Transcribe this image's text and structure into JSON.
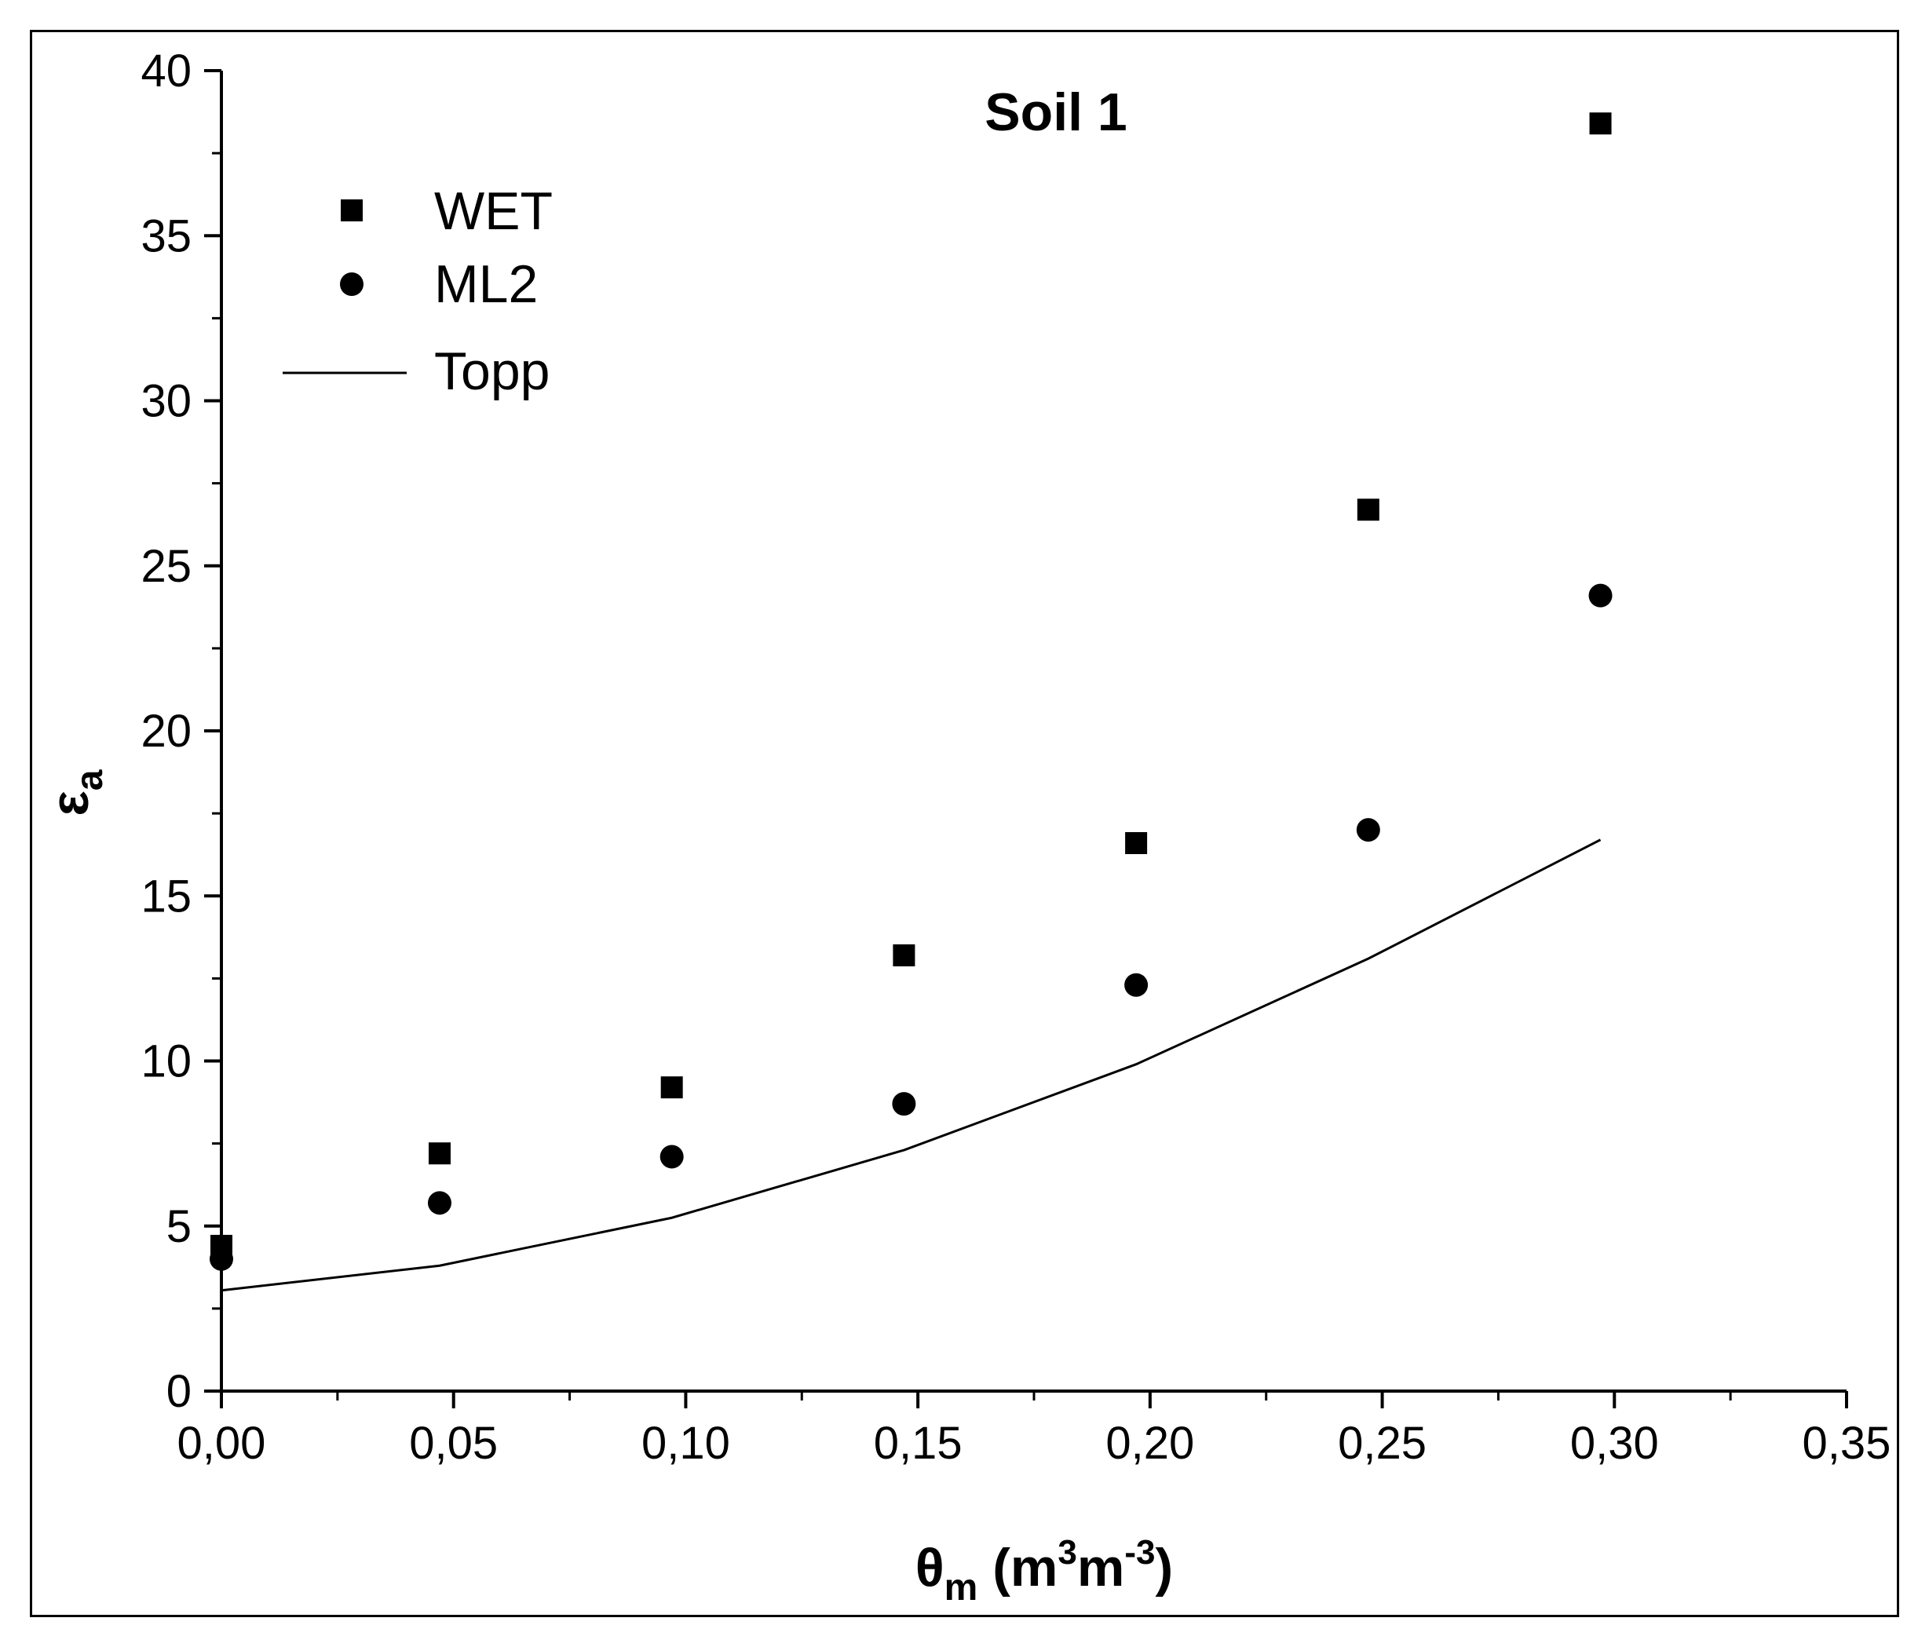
{
  "chart_data": {
    "type": "scatter",
    "title": "Soil 1",
    "xlabel": {
      "symbol": "θ",
      "symbol_sub": "m",
      "unit_open": " (m",
      "unit_sup1": "3",
      "unit_mid": "m",
      "unit_sup2": "-3",
      "unit_close": ")"
    },
    "ylabel": {
      "symbol": "ε",
      "symbol_sub": "a"
    },
    "xlim": [
      0,
      0.35
    ],
    "ylim": [
      0,
      40
    ],
    "x_ticks": [
      {
        "value": 0.0,
        "label": "0,00"
      },
      {
        "value": 0.05,
        "label": "0,05"
      },
      {
        "value": 0.1,
        "label": "0,10"
      },
      {
        "value": 0.15,
        "label": "0,15"
      },
      {
        "value": 0.2,
        "label": "0,20"
      },
      {
        "value": 0.25,
        "label": "0,25"
      },
      {
        "value": 0.3,
        "label": "0,30"
      },
      {
        "value": 0.35,
        "label": "0,35"
      }
    ],
    "y_ticks": [
      {
        "value": 0,
        "label": "0"
      },
      {
        "value": 5,
        "label": "5"
      },
      {
        "value": 10,
        "label": "10"
      },
      {
        "value": 15,
        "label": "15"
      },
      {
        "value": 20,
        "label": "20"
      },
      {
        "value": 25,
        "label": "25"
      },
      {
        "value": 30,
        "label": "30"
      },
      {
        "value": 35,
        "label": "35"
      },
      {
        "value": 40,
        "label": "40"
      }
    ],
    "x_minor_step": 0.025,
    "y_minor_step": 2.5,
    "grid": false,
    "legend_position": "top-left",
    "series": [
      {
        "name": "WET",
        "kind": "scatter",
        "marker": "square",
        "x": [
          0.0,
          0.047,
          0.097,
          0.147,
          0.197,
          0.247,
          0.297
        ],
        "y": [
          4.4,
          7.2,
          9.2,
          13.2,
          16.6,
          26.7,
          38.4
        ]
      },
      {
        "name": "ML2",
        "kind": "scatter",
        "marker": "circle",
        "x": [
          0.0,
          0.047,
          0.097,
          0.147,
          0.197,
          0.247,
          0.297
        ],
        "y": [
          4.0,
          5.7,
          7.1,
          8.7,
          12.3,
          17.0,
          24.1
        ]
      },
      {
        "name": "Topp",
        "kind": "line",
        "marker": "none",
        "x": [
          0.0,
          0.047,
          0.097,
          0.147,
          0.197,
          0.247,
          0.297
        ],
        "y": [
          3.05,
          3.8,
          5.25,
          7.3,
          9.9,
          13.1,
          16.7
        ]
      }
    ],
    "colors": {
      "ink": "#000000",
      "background": "#ffffff"
    }
  }
}
